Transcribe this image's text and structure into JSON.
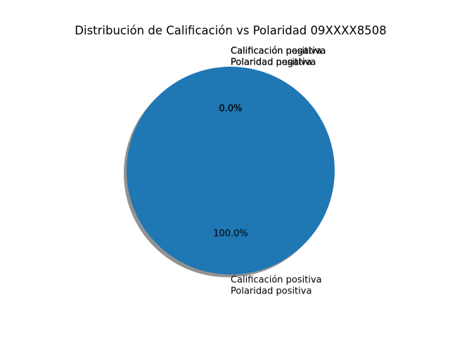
{
  "chart_data": {
    "type": "pie",
    "title": "Distribución de Calificación vs Polaridad 09XXXX8508",
    "shadow": true,
    "start_angle_deg": 90,
    "direction": "counterclockwise",
    "slices": [
      {
        "label_lines": [
          "Calificación positiva",
          "Polaridad positiva"
        ],
        "value": 100.0,
        "pct_label": "100.0%",
        "color": "#1f77b4"
      },
      {
        "label_lines": [
          "Calificación negativa",
          "Polaridad negativa"
        ],
        "value": 0.0,
        "pct_label": "0.0%",
        "color": "#ff7f0e"
      },
      {
        "label_lines": [
          "Calificación positiva",
          "Polaridad negativa"
        ],
        "value": 0.0,
        "pct_label": "0.0%",
        "color": "#2ca02c"
      },
      {
        "label_lines": [
          "Calificación negativa",
          "Polaridad positiva"
        ],
        "value": 0.0,
        "pct_label": "0.0%",
        "color": "#d62728"
      }
    ]
  }
}
